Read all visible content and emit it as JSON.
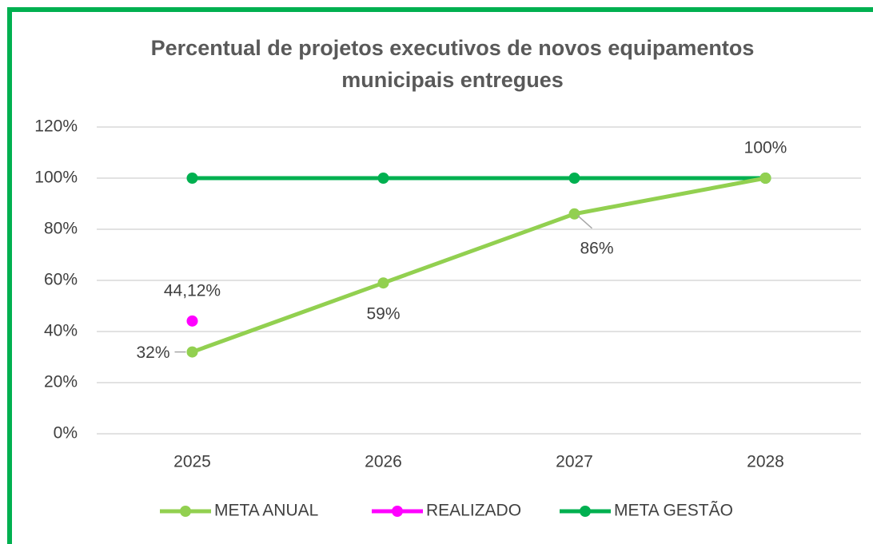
{
  "chart_data": {
    "type": "line",
    "title": "Percentual de projetos executivos de novos equipamentos municipais entregues",
    "categories": [
      "2025",
      "2026",
      "2027",
      "2028"
    ],
    "series": [
      {
        "name": "META ANUAL",
        "color": "#92d050",
        "values": [
          32,
          59,
          86,
          100
        ],
        "value_labels": [
          "32%",
          "59%",
          "86%",
          "100%"
        ]
      },
      {
        "name": "REALIZADO",
        "color": "#ff00ff",
        "values": [
          44.12,
          null,
          null,
          null
        ],
        "value_labels": [
          "44,12%",
          null,
          null,
          null
        ]
      },
      {
        "name": "META GESTÃO",
        "color": "#00b050",
        "values": [
          100,
          100,
          100,
          100
        ]
      }
    ],
    "ylim": [
      0,
      120
    ],
    "yticks": [
      {
        "value": 0,
        "label": "0%"
      },
      {
        "value": 20,
        "label": "20%"
      },
      {
        "value": 40,
        "label": "40%"
      },
      {
        "value": 60,
        "label": "60%"
      },
      {
        "value": 80,
        "label": "80%"
      },
      {
        "value": 100,
        "label": "100%"
      },
      {
        "value": 120,
        "label": "120%"
      }
    ],
    "grid": true,
    "legend": "bottom"
  }
}
